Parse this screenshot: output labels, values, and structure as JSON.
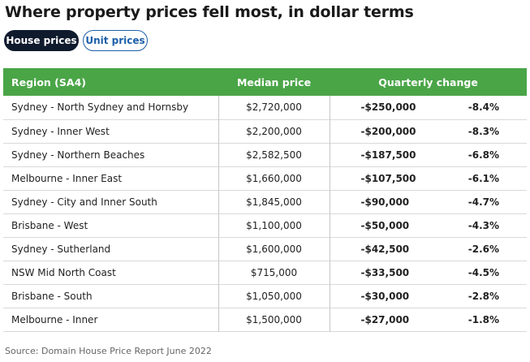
{
  "title": "Where property prices fell most, in dollar terms",
  "toggles": [
    {
      "label": "House prices",
      "active": true
    },
    {
      "label": "Unit prices",
      "active": false
    }
  ],
  "table": {
    "headers": {
      "region": "Region (SA4)",
      "median": "Median price",
      "change": "Quarterly change"
    },
    "rows": [
      {
        "region": "Sydney - North Sydney and Hornsby",
        "median": "$2,720,000",
        "change_dollar": "-$250,000",
        "change_pct": "-8.4%"
      },
      {
        "region": "Sydney - Inner West",
        "median": "$2,200,000",
        "change_dollar": "-$200,000",
        "change_pct": "-8.3%"
      },
      {
        "region": "Sydney - Northern Beaches",
        "median": "$2,582,500",
        "change_dollar": "-$187,500",
        "change_pct": "-6.8%"
      },
      {
        "region": "Melbourne - Inner East",
        "median": "$1,660,000",
        "change_dollar": "-$107,500",
        "change_pct": "-6.1%"
      },
      {
        "region": "Sydney - City and Inner South",
        "median": "$1,845,000",
        "change_dollar": "-$90,000",
        "change_pct": "-4.7%"
      },
      {
        "region": "Brisbane - West",
        "median": "$1,100,000",
        "change_dollar": "-$50,000",
        "change_pct": "-4.3%"
      },
      {
        "region": "Sydney - Sutherland",
        "median": "$1,600,000",
        "change_dollar": "-$42,500",
        "change_pct": "-2.6%"
      },
      {
        "region": "NSW Mid North Coast",
        "median": "$715,000",
        "change_dollar": "-$33,500",
        "change_pct": "-4.5%"
      },
      {
        "region": "Brisbane - South",
        "median": "$1,050,000",
        "change_dollar": "-$30,000",
        "change_pct": "-2.8%"
      },
      {
        "region": "Melbourne - Inner",
        "median": "$1,500,000",
        "change_dollar": "-$27,000",
        "change_pct": "-1.8%"
      }
    ]
  },
  "source": "Source: Domain House Price Report June 2022",
  "colors": {
    "header_green": "#4aa547",
    "active_toggle": "#0f1b2d",
    "link_blue": "#1d5fa8"
  }
}
